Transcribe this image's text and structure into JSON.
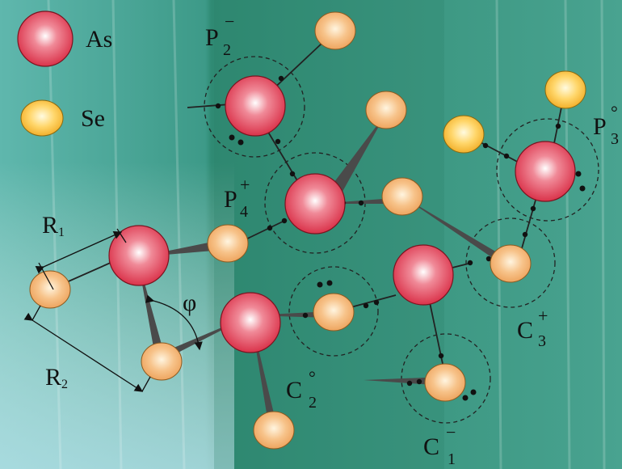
{
  "legend": [
    {
      "label": "As",
      "color": "#e23a4f"
    },
    {
      "label": "Se",
      "color": "#f2b734"
    }
  ],
  "defects": [
    {
      "main": "P",
      "sub": "2",
      "sup": "−"
    },
    {
      "main": "P",
      "sub": "4",
      "sup": "+"
    },
    {
      "main": "P",
      "sub": "3",
      "sup": "°"
    },
    {
      "main": "C",
      "sub": "3",
      "sup": "+"
    },
    {
      "main": "C",
      "sub": "2",
      "sup": "°"
    },
    {
      "main": "C",
      "sub": "1",
      "sup": "−"
    }
  ],
  "geometry_labels": {
    "r1": {
      "main": "R",
      "sub": "1"
    },
    "r2": {
      "main": "R",
      "sub": "2"
    },
    "angle": "φ"
  },
  "colors": {
    "background": "#3f9a86",
    "as_atom": "#e23a4f",
    "se_atom": "#f2b15e",
    "bond": "#4a4a4a"
  }
}
